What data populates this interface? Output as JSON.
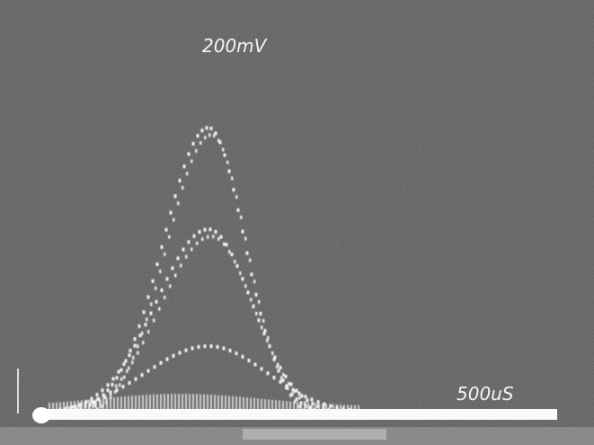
{
  "screen": {
    "volts_per_div": "200mV",
    "time_per_div": "500uS"
  }
}
